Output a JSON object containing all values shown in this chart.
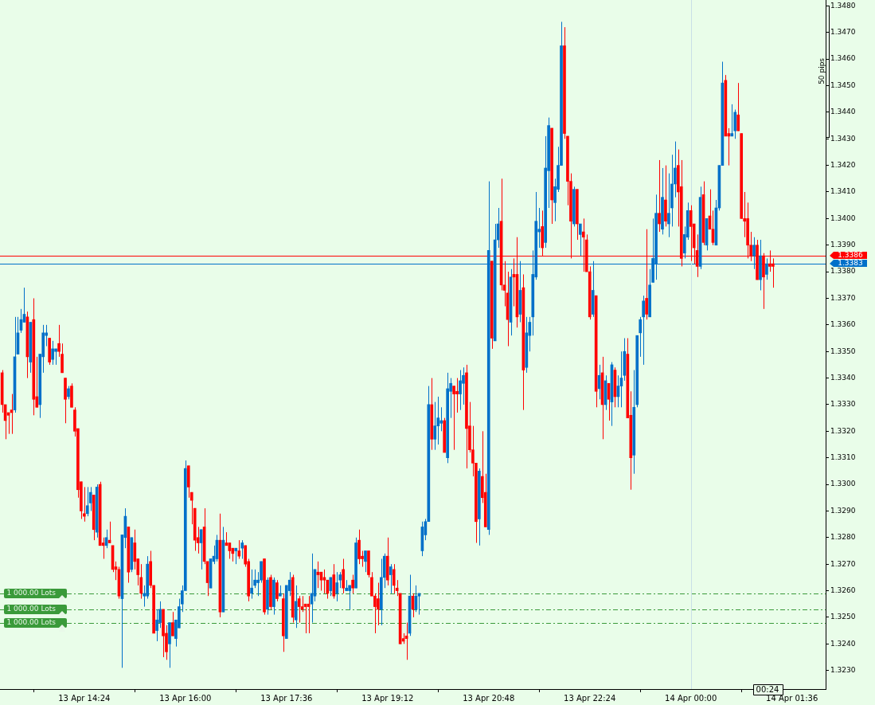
{
  "chart_data": {
    "type": "candlestick",
    "x": [
      "--04-13T13:06",
      "--04-13T13:09",
      "--04-13T13:12",
      "--04-13T13:15",
      "--04-13T13:18",
      "--04-13T13:21",
      "--04-13T13:24",
      "--04-13T13:27",
      "--04-13T13:30",
      "--04-13T13:33",
      "--04-13T13:36",
      "--04-13T13:39",
      "--04-13T13:42",
      "--04-13T13:45",
      "--04-13T13:48",
      "--04-13T13:51",
      "--04-13T13:54",
      "--04-13T13:57",
      "--04-13T14:00",
      "--04-13T14:03",
      "--04-13T14:06",
      "--04-13T14:09",
      "--04-13T14:12",
      "--04-13T14:15",
      "--04-13T14:18",
      "--04-13T14:21",
      "--04-13T14:24",
      "--04-13T14:27",
      "--04-13T14:30",
      "--04-13T14:33",
      "--04-13T14:36",
      "--04-13T14:39",
      "--04-13T14:42",
      "--04-13T14:45",
      "--04-13T14:48",
      "--04-13T14:51",
      "--04-13T14:54",
      "--04-13T14:57",
      "--04-13T15:00",
      "--04-13T15:03",
      "--04-13T15:06",
      "--04-13T15:09",
      "--04-13T15:12",
      "--04-13T15:15",
      "--04-13T15:18",
      "--04-13T15:21",
      "--04-13T15:24",
      "--04-13T15:27",
      "--04-13T15:30",
      "--04-13T15:33",
      "--04-13T15:36",
      "--04-13T15:39",
      "--04-13T15:42",
      "--04-13T15:45",
      "--04-13T15:48",
      "--04-13T15:51",
      "--04-13T15:54",
      "--04-13T15:57",
      "--04-13T16:00",
      "--04-13T16:03",
      "--04-13T16:06",
      "--04-13T16:09",
      "--04-13T16:12",
      "--04-13T16:15",
      "--04-13T16:18",
      "--04-13T16:21",
      "--04-13T16:24",
      "--04-13T16:27",
      "--04-13T16:30",
      "--04-13T16:33",
      "--04-13T16:36",
      "--04-13T16:39",
      "--04-13T16:42",
      "--04-13T16:45",
      "--04-13T16:48",
      "--04-13T16:51",
      "--04-13T16:54",
      "--04-13T16:57",
      "--04-13T17:00",
      "--04-13T17:03",
      "--04-13T17:06",
      "--04-13T17:09",
      "--04-13T17:12",
      "--04-13T17:15",
      "--04-13T17:18",
      "--04-13T17:21",
      "--04-13T17:24",
      "--04-13T17:27",
      "--04-13T17:30",
      "--04-13T17:33",
      "--04-13T17:36",
      "--04-13T17:39",
      "--04-13T17:42",
      "--04-13T17:45",
      "--04-13T17:48",
      "--04-13T17:51",
      "--04-13T17:54",
      "--04-13T17:57",
      "--04-13T18:00",
      "--04-13T18:03",
      "--04-13T18:06",
      "--04-13T18:09",
      "--04-13T18:12",
      "--04-13T18:15",
      "--04-13T18:18",
      "--04-13T18:21",
      "--04-13T18:24",
      "--04-13T18:27",
      "--04-13T18:30",
      "--04-13T18:33",
      "--04-13T18:36",
      "--04-13T18:39",
      "--04-13T18:42",
      "--04-13T18:45",
      "--04-13T18:48",
      "--04-13T18:51",
      "--04-13T18:54",
      "--04-13T18:57",
      "--04-13T19:00",
      "--04-13T19:03",
      "--04-13T19:06",
      "--04-13T19:09",
      "--04-13T19:12",
      "--04-13T19:15",
      "--04-13T19:18",
      "--04-13T19:21",
      "--04-13T19:24",
      "--04-13T19:27",
      "--04-13T19:30",
      "--04-13T19:33",
      "--04-13T19:36",
      "--04-13T19:39",
      "--04-13T19:42",
      "--04-13T19:45",
      "--04-13T19:48",
      "--04-13T19:51",
      "--04-13T19:54",
      "--04-13T19:57",
      "--04-13T20:00",
      "--04-13T20:03",
      "--04-13T20:06",
      "--04-13T20:09",
      "--04-13T20:12",
      "--04-13T20:15",
      "--04-13T20:18",
      "--04-13T20:21",
      "--04-13T20:24",
      "--04-13T20:27",
      "--04-13T20:30",
      "--04-13T20:33",
      "--04-13T20:36",
      "--04-13T20:39",
      "--04-13T20:42",
      "--04-13T20:45",
      "--04-13T20:48",
      "--04-13T20:51",
      "--04-13T20:54",
      "--04-13T20:57",
      "--04-13T21:00",
      "--04-13T21:03",
      "--04-13T21:06",
      "--04-13T21:09",
      "--04-13T21:12",
      "--04-13T21:15",
      "--04-13T21:18",
      "--04-13T21:21",
      "--04-13T21:24",
      "--04-13T21:27",
      "--04-13T21:30",
      "--04-13T21:33",
      "--04-13T21:36",
      "--04-13T21:39",
      "--04-13T21:42",
      "--04-13T21:45",
      "--04-13T21:48",
      "--04-13T21:51",
      "--04-13T21:54",
      "--04-13T21:57",
      "--04-13T22:00",
      "--04-13T22:03",
      "--04-13T22:06",
      "--04-13T22:09",
      "--04-13T22:12",
      "--04-13T22:15",
      "--04-13T22:18",
      "--04-13T22:21",
      "--04-13T22:24",
      "--04-13T22:27",
      "--04-13T22:30",
      "--04-13T22:33",
      "--04-13T22:36",
      "--04-13T22:39",
      "--04-13T22:42",
      "--04-13T22:45",
      "--04-13T22:48",
      "--04-13T22:51",
      "--04-13T22:54",
      "--04-13T22:57",
      "--04-13T23:00",
      "--04-13T23:03",
      "--04-13T23:06",
      "--04-13T23:09",
      "--04-13T23:12",
      "--04-13T23:15",
      "--04-13T23:18",
      "--04-13T23:21",
      "--04-13T23:24",
      "--04-13T23:27",
      "--04-13T23:30",
      "--04-13T23:33",
      "--04-13T23:36",
      "--04-13T23:39",
      "--04-13T23:42",
      "--04-13T23:45",
      "--04-13T23:48",
      "--04-13T23:51",
      "--04-13T23:54",
      "--04-13T23:57",
      "--04-14T00:00",
      "--04-14T00:03",
      "--04-14T00:06",
      "--04-14T00:09",
      "--04-14T00:12",
      "--04-14T00:15",
      "--04-14T00:18",
      "--04-14T00:21",
      "--04-14T00:24",
      "--04-14T00:27",
      "--04-14T00:30",
      "--04-14T00:33",
      "--04-14T00:36",
      "--04-14T00:39",
      "--04-14T00:42",
      "--04-14T00:45",
      "--04-14T00:48",
      "--04-14T00:51",
      "--04-14T00:54",
      "--04-14T00:57",
      "--04-14T01:00",
      "--04-14T01:03",
      "--04-14T01:06",
      "--04-14T01:09",
      "--04-14T01:12",
      "--04-14T01:15",
      "--04-14T01:18"
    ],
    "ohlc": [
      [
        1.3342,
        1.3343,
        1.3327,
        1.333
      ],
      [
        1.333,
        1.333,
        1.3317,
        1.3324
      ],
      [
        1.3327,
        1.3327,
        1.3319,
        1.3326
      ],
      [
        1.3328,
        1.3334,
        1.3319,
        1.3327
      ],
      [
        1.3328,
        1.3363,
        1.3327,
        1.3348
      ],
      [
        1.3349,
        1.3363,
        1.3349,
        1.3357
      ],
      [
        1.3358,
        1.3366,
        1.3357,
        1.3362
      ],
      [
        1.3361,
        1.3374,
        1.3361,
        1.3364
      ],
      [
        1.3363,
        1.3365,
        1.334,
        1.3348
      ],
      [
        1.3346,
        1.3361,
        1.3342,
        1.3361
      ],
      [
        1.3362,
        1.337,
        1.3326,
        1.3332
      ],
      [
        1.3333,
        1.3348,
        1.3329,
        1.3329
      ],
      [
        1.333,
        1.3349,
        1.3325,
        1.3349
      ],
      [
        1.3348,
        1.336,
        1.3342,
        1.3357
      ],
      [
        1.3356,
        1.336,
        1.3352,
        1.3357
      ],
      [
        1.3355,
        1.3355,
        1.3345,
        1.3346
      ],
      [
        1.3347,
        1.3354,
        1.3345,
        1.3351
      ],
      [
        1.335,
        1.3351,
        1.3345,
        1.3351
      ],
      [
        1.3353,
        1.336,
        1.3348,
        1.335
      ],
      [
        1.3349,
        1.3353,
        1.3342,
        1.3342
      ],
      [
        1.334,
        1.334,
        1.3323,
        1.3332
      ],
      [
        1.3333,
        1.3337,
        1.3332,
        1.3336
      ],
      [
        1.3337,
        1.3338,
        1.3329,
        1.3329
      ],
      [
        1.3328,
        1.3329,
        1.3318,
        1.332
      ],
      [
        1.3321,
        1.3321,
        1.3295,
        1.3298
      ],
      [
        1.3301,
        1.3301,
        1.3287,
        1.329
      ],
      [
        1.3289,
        1.3299,
        1.3286,
        1.3288
      ],
      [
        1.3289,
        1.3299,
        1.3288,
        1.3292
      ],
      [
        1.3293,
        1.3299,
        1.329,
        1.3297
      ],
      [
        1.3296,
        1.3296,
        1.3279,
        1.3283
      ],
      [
        1.3282,
        1.33,
        1.328,
        1.3299
      ],
      [
        1.33,
        1.3301,
        1.3277,
        1.3277
      ],
      [
        1.3278,
        1.328,
        1.3272,
        1.3277
      ],
      [
        1.3277,
        1.3283,
        1.3276,
        1.328
      ],
      [
        1.3279,
        1.3286,
        1.3278,
        1.3278
      ],
      [
        1.3277,
        1.3277,
        1.3267,
        1.3268
      ],
      [
        1.3269,
        1.3271,
        1.3264,
        1.3268
      ],
      [
        1.3268,
        1.3269,
        1.3257,
        1.3258
      ],
      [
        1.3257,
        1.3281,
        1.3231,
        1.3281
      ],
      [
        1.328,
        1.3291,
        1.3276,
        1.3288
      ],
      [
        1.3284,
        1.3284,
        1.3263,
        1.3267
      ],
      [
        1.3268,
        1.328,
        1.3267,
        1.328
      ],
      [
        1.3278,
        1.3283,
        1.3268,
        1.3271
      ],
      [
        1.3272,
        1.3272,
        1.3262,
        1.3266
      ],
      [
        1.3265,
        1.327,
        1.3257,
        1.3259
      ],
      [
        1.3258,
        1.3262,
        1.3254,
        1.3259
      ],
      [
        1.3258,
        1.3273,
        1.3257,
        1.327
      ],
      [
        1.3271,
        1.3275,
        1.3261,
        1.3262
      ],
      [
        1.3262,
        1.3262,
        1.3244,
        1.3244
      ],
      [
        1.3245,
        1.3253,
        1.3241,
        1.3249
      ],
      [
        1.3248,
        1.3256,
        1.3246,
        1.3253
      ],
      [
        1.3253,
        1.3253,
        1.3235,
        1.3243
      ],
      [
        1.3244,
        1.3247,
        1.3234,
        1.3237
      ],
      [
        1.324,
        1.3248,
        1.3231,
        1.3248
      ],
      [
        1.3248,
        1.3252,
        1.3243,
        1.3243
      ],
      [
        1.3242,
        1.3249,
        1.3239,
        1.3249
      ],
      [
        1.3246,
        1.3257,
        1.3246,
        1.3254
      ],
      [
        1.3255,
        1.3262,
        1.3252,
        1.326
      ],
      [
        1.326,
        1.3309,
        1.326,
        1.3306
      ],
      [
        1.3307,
        1.3307,
        1.3295,
        1.3299
      ],
      [
        1.3297,
        1.3297,
        1.3285,
        1.3294
      ],
      [
        1.3291,
        1.3291,
        1.3275,
        1.3279
      ],
      [
        1.328,
        1.3284,
        1.3274,
        1.3278
      ],
      [
        1.3278,
        1.3283,
        1.3268,
        1.3283
      ],
      [
        1.3284,
        1.3291,
        1.327,
        1.3271
      ],
      [
        1.3271,
        1.3271,
        1.3258,
        1.3263
      ],
      [
        1.3261,
        1.3272,
        1.3261,
        1.3272
      ],
      [
        1.3271,
        1.3277,
        1.327,
        1.3273
      ],
      [
        1.3272,
        1.3281,
        1.3271,
        1.3279
      ],
      [
        1.3279,
        1.3289,
        1.325,
        1.3252
      ],
      [
        1.3252,
        1.3284,
        1.3252,
        1.3279
      ],
      [
        1.3278,
        1.3282,
        1.3277,
        1.3277
      ],
      [
        1.3278,
        1.3278,
        1.3272,
        1.3275
      ],
      [
        1.3276,
        1.3276,
        1.3271,
        1.3274
      ],
      [
        1.3275,
        1.3276,
        1.327,
        1.3276
      ],
      [
        1.3275,
        1.3279,
        1.3272,
        1.3273
      ],
      [
        1.3276,
        1.3279,
        1.3272,
        1.3278
      ],
      [
        1.3277,
        1.3277,
        1.3269,
        1.327
      ],
      [
        1.3271,
        1.3272,
        1.3256,
        1.3258
      ],
      [
        1.3259,
        1.3268,
        1.3257,
        1.3261
      ],
      [
        1.3262,
        1.3268,
        1.3261,
        1.3264
      ],
      [
        1.3263,
        1.3267,
        1.3258,
        1.3264
      ],
      [
        1.3264,
        1.3271,
        1.3263,
        1.3271
      ],
      [
        1.3272,
        1.3272,
        1.3251,
        1.3252
      ],
      [
        1.3253,
        1.3265,
        1.3251,
        1.3264
      ],
      [
        1.3265,
        1.3266,
        1.3253,
        1.3254
      ],
      [
        1.3254,
        1.3265,
        1.3251,
        1.3264
      ],
      [
        1.3263,
        1.3264,
        1.3256,
        1.3257
      ],
      [
        1.3258,
        1.3262,
        1.3258,
        1.3259
      ],
      [
        1.3257,
        1.3259,
        1.3237,
        1.3243
      ],
      [
        1.3242,
        1.3262,
        1.3242,
        1.3262
      ],
      [
        1.326,
        1.3267,
        1.3258,
        1.3264
      ],
      [
        1.3265,
        1.3266,
        1.3248,
        1.325
      ],
      [
        1.3249,
        1.3262,
        1.3246,
        1.3256
      ],
      [
        1.3257,
        1.3258,
        1.3248,
        1.3254
      ],
      [
        1.3254,
        1.3258,
        1.3252,
        1.3253
      ],
      [
        1.3255,
        1.3255,
        1.3244,
        1.3254
      ],
      [
        1.3255,
        1.3258,
        1.3244,
        1.3254
      ],
      [
        1.3255,
        1.3274,
        1.3248,
        1.3259
      ],
      [
        1.3258,
        1.3268,
        1.3256,
        1.3268
      ],
      [
        1.3267,
        1.3271,
        1.3261,
        1.3266
      ],
      [
        1.3267,
        1.3267,
        1.326,
        1.3264
      ],
      [
        1.3265,
        1.3268,
        1.3259,
        1.3264
      ],
      [
        1.3264,
        1.3264,
        1.3257,
        1.3259
      ],
      [
        1.326,
        1.3265,
        1.3258,
        1.3265
      ],
      [
        1.3266,
        1.327,
        1.3257,
        1.3258
      ],
      [
        1.3259,
        1.3267,
        1.3256,
        1.3263
      ],
      [
        1.3264,
        1.3267,
        1.3261,
        1.3266
      ],
      [
        1.3268,
        1.3272,
        1.3259,
        1.3261
      ],
      [
        1.326,
        1.3264,
        1.326,
        1.3261
      ],
      [
        1.326,
        1.3262,
        1.3253,
        1.3262
      ],
      [
        1.3264,
        1.3266,
        1.3259,
        1.3261
      ],
      [
        1.3261,
        1.328,
        1.3261,
        1.3278
      ],
      [
        1.3279,
        1.3283,
        1.327,
        1.3272
      ],
      [
        1.3273,
        1.3275,
        1.3269,
        1.3272
      ],
      [
        1.3271,
        1.3275,
        1.3267,
        1.3275
      ],
      [
        1.3275,
        1.3275,
        1.3265,
        1.3266
      ],
      [
        1.3265,
        1.3267,
        1.3258,
        1.3258
      ],
      [
        1.3258,
        1.3259,
        1.3244,
        1.3254
      ],
      [
        1.3257,
        1.3263,
        1.3247,
        1.3253
      ],
      [
        1.3253,
        1.3272,
        1.3247,
        1.3265
      ],
      [
        1.3265,
        1.3274,
        1.3261,
        1.3273
      ],
      [
        1.3273,
        1.328,
        1.3262,
        1.3264
      ],
      [
        1.3266,
        1.327,
        1.3259,
        1.3269
      ],
      [
        1.3268,
        1.327,
        1.3259,
        1.3262
      ],
      [
        1.3261,
        1.3264,
        1.3258,
        1.326
      ],
      [
        1.3259,
        1.3259,
        1.324,
        1.324
      ],
      [
        1.3242,
        1.3244,
        1.324,
        1.3241
      ],
      [
        1.3243,
        1.3248,
        1.3234,
        1.3242
      ],
      [
        1.3244,
        1.3266,
        1.3243,
        1.3258
      ],
      [
        1.3258,
        1.3259,
        1.325,
        1.3253
      ],
      [
        1.3253,
        1.3262,
        1.3252,
        1.3258
      ],
      [
        1.3258,
        1.3259,
        1.3251,
        1.3259
      ],
      [
        1.3275,
        1.3286,
        1.3273,
        1.3284
      ],
      [
        1.3281,
        1.3287,
        1.3279,
        1.3286
      ],
      [
        1.3286,
        1.3337,
        1.3286,
        1.333
      ],
      [
        1.333,
        1.334,
        1.3313,
        1.3317
      ],
      [
        1.3317,
        1.3331,
        1.3313,
        1.3322
      ],
      [
        1.3322,
        1.3333,
        1.3315,
        1.3325
      ],
      [
        1.3323,
        1.3329,
        1.332,
        1.3324
      ],
      [
        1.3324,
        1.3325,
        1.3312,
        1.3312
      ],
      [
        1.331,
        1.3342,
        1.3308,
        1.3336
      ],
      [
        1.3335,
        1.334,
        1.3325,
        1.3338
      ],
      [
        1.3337,
        1.3337,
        1.3313,
        1.3334
      ],
      [
        1.3335,
        1.334,
        1.3327,
        1.3334
      ],
      [
        1.3334,
        1.3343,
        1.3328,
        1.3339
      ],
      [
        1.3338,
        1.3344,
        1.333,
        1.3341
      ],
      [
        1.3342,
        1.3345,
        1.3306,
        1.3321
      ],
      [
        1.3322,
        1.3331,
        1.3312,
        1.3313
      ],
      [
        1.3313,
        1.3322,
        1.3303,
        1.3308
      ],
      [
        1.3308,
        1.3308,
        1.3278,
        1.3286
      ],
      [
        1.3287,
        1.3306,
        1.3277,
        1.3305
      ],
      [
        1.3303,
        1.332,
        1.3293,
        1.3295
      ],
      [
        1.3297,
        1.3304,
        1.3284,
        1.3284
      ],
      [
        1.3283,
        1.3414,
        1.3281,
        1.3388
      ],
      [
        1.3384,
        1.3384,
        1.3351,
        1.3355
      ],
      [
        1.3354,
        1.3398,
        1.3354,
        1.3392
      ],
      [
        1.3392,
        1.3404,
        1.3389,
        1.3398
      ],
      [
        1.3399,
        1.3415,
        1.3373,
        1.3375
      ],
      [
        1.3375,
        1.3384,
        1.3367,
        1.3373
      ],
      [
        1.3372,
        1.338,
        1.3352,
        1.3362
      ],
      [
        1.3361,
        1.3381,
        1.3356,
        1.3378
      ],
      [
        1.3379,
        1.3385,
        1.3367,
        1.3378
      ],
      [
        1.3379,
        1.3393,
        1.3359,
        1.3363
      ],
      [
        1.3364,
        1.3384,
        1.3361,
        1.3373
      ],
      [
        1.3374,
        1.3379,
        1.3328,
        1.3343
      ],
      [
        1.3344,
        1.3363,
        1.3342,
        1.3357
      ],
      [
        1.3356,
        1.3363,
        1.335,
        1.3361
      ],
      [
        1.3363,
        1.3388,
        1.3356,
        1.3379
      ],
      [
        1.3378,
        1.341,
        1.3377,
        1.3399
      ],
      [
        1.3395,
        1.3404,
        1.3389,
        1.3396
      ],
      [
        1.3397,
        1.3403,
        1.3386,
        1.3389
      ],
      [
        1.3391,
        1.3431,
        1.3389,
        1.3419
      ],
      [
        1.3418,
        1.3438,
        1.3404,
        1.3435
      ],
      [
        1.3434,
        1.3434,
        1.3398,
        1.3407
      ],
      [
        1.3406,
        1.3415,
        1.3399,
        1.3412
      ],
      [
        1.3411,
        1.3427,
        1.341,
        1.342
      ],
      [
        1.342,
        1.3474,
        1.342,
        1.3465
      ],
      [
        1.3465,
        1.3472,
        1.343,
        1.3432
      ],
      [
        1.3431,
        1.3431,
        1.3405,
        1.3414
      ],
      [
        1.3414,
        1.3417,
        1.3385,
        1.3399
      ],
      [
        1.3398,
        1.3412,
        1.3397,
        1.3411
      ],
      [
        1.3411,
        1.3411,
        1.3392,
        1.3398
      ],
      [
        1.3394,
        1.3398,
        1.3386,
        1.3398
      ],
      [
        1.3395,
        1.34,
        1.338,
        1.3393
      ],
      [
        1.3392,
        1.3394,
        1.338,
        1.338
      ],
      [
        1.338,
        1.3382,
        1.3362,
        1.3363
      ],
      [
        1.3364,
        1.3384,
        1.3363,
        1.3373
      ],
      [
        1.3371,
        1.3371,
        1.3329,
        1.3335
      ],
      [
        1.3336,
        1.3345,
        1.3332,
        1.3341
      ],
      [
        1.3342,
        1.3348,
        1.3317,
        1.333
      ],
      [
        1.333,
        1.3341,
        1.3328,
        1.3339
      ],
      [
        1.3338,
        1.3338,
        1.3324,
        1.3332
      ],
      [
        1.3331,
        1.3346,
        1.3322,
        1.3345
      ],
      [
        1.3343,
        1.3344,
        1.3329,
        1.3333
      ],
      [
        1.3333,
        1.3341,
        1.3329,
        1.3337
      ],
      [
        1.3337,
        1.335,
        1.3329,
        1.334
      ],
      [
        1.3341,
        1.3355,
        1.3339,
        1.335
      ],
      [
        1.3349,
        1.3355,
        1.3325,
        1.3325
      ],
      [
        1.3326,
        1.3335,
        1.3298,
        1.331
      ],
      [
        1.3311,
        1.3343,
        1.3304,
        1.3329
      ],
      [
        1.333,
        1.3356,
        1.3329,
        1.3356
      ],
      [
        1.3357,
        1.3363,
        1.3348,
        1.3362
      ],
      [
        1.3363,
        1.3371,
        1.3345,
        1.3369
      ],
      [
        1.337,
        1.3396,
        1.3362,
        1.3364
      ],
      [
        1.3363,
        1.3381,
        1.3363,
        1.3375
      ],
      [
        1.3376,
        1.34,
        1.3376,
        1.3385
      ],
      [
        1.3383,
        1.3409,
        1.3377,
        1.3402
      ],
      [
        1.3402,
        1.3422,
        1.3395,
        1.3398
      ],
      [
        1.3396,
        1.3419,
        1.3394,
        1.3408
      ],
      [
        1.3407,
        1.342,
        1.3397,
        1.3399
      ],
      [
        1.3398,
        1.3417,
        1.3393,
        1.3402
      ],
      [
        1.3404,
        1.3424,
        1.3397,
        1.3413
      ],
      [
        1.3413,
        1.3429,
        1.3408,
        1.3419
      ],
      [
        1.342,
        1.3426,
        1.3397,
        1.341
      ],
      [
        1.3412,
        1.3422,
        1.3382,
        1.3385
      ],
      [
        1.3387,
        1.3397,
        1.3385,
        1.3394
      ],
      [
        1.3393,
        1.3406,
        1.3392,
        1.3403
      ],
      [
        1.3403,
        1.3405,
        1.3384,
        1.3397
      ],
      [
        1.3398,
        1.3398,
        1.3383,
        1.3389
      ],
      [
        1.3388,
        1.3394,
        1.3378,
        1.3382
      ],
      [
        1.3382,
        1.3412,
        1.3381,
        1.3408
      ],
      [
        1.3409,
        1.3414,
        1.339,
        1.3391
      ],
      [
        1.339,
        1.34,
        1.3388,
        1.34
      ],
      [
        1.3401,
        1.3411,
        1.3396,
        1.3396
      ],
      [
        1.3396,
        1.3403,
        1.339,
        1.3391
      ],
      [
        1.339,
        1.3407,
        1.339,
        1.3404
      ],
      [
        1.3404,
        1.342,
        1.3403,
        1.342
      ],
      [
        1.342,
        1.3459,
        1.342,
        1.3451
      ],
      [
        1.3452,
        1.3454,
        1.3431,
        1.3431
      ],
      [
        1.3432,
        1.3434,
        1.342,
        1.3431
      ],
      [
        1.3431,
        1.3443,
        1.3431,
        1.3432
      ],
      [
        1.3433,
        1.3441,
        1.343,
        1.344
      ],
      [
        1.3439,
        1.3451,
        1.3433,
        1.3433
      ],
      [
        1.3432,
        1.3432,
        1.34,
        1.34
      ],
      [
        1.34,
        1.341,
        1.3393,
        1.3399
      ],
      [
        1.34,
        1.3406,
        1.3385,
        1.339
      ],
      [
        1.339,
        1.3395,
        1.3384,
        1.3386
      ],
      [
        1.3386,
        1.3393,
        1.3381,
        1.339
      ],
      [
        1.339,
        1.3392,
        1.3377,
        1.3377
      ],
      [
        1.3377,
        1.3392,
        1.3373,
        1.3386
      ],
      [
        1.3386,
        1.3387,
        1.3366,
        1.3378
      ],
      [
        1.3379,
        1.3385,
        1.3377,
        1.3383
      ],
      [
        1.3383,
        1.3388,
        1.338,
        1.3382
      ],
      [
        1.3383,
        1.3385,
        1.3374,
        1.3382
      ]
    ],
    "colors": [
      "#ff0000",
      "#ff0000",
      "#ff0000",
      "#ff0000",
      "#0070c9",
      "#0070c9",
      "#0070c9",
      "#0070c9",
      "#ff0000",
      "#0070c9",
      "#ff0000",
      "#ff0000",
      "#0070c9",
      "#0070c9",
      "#0070c9",
      "#ff0000",
      "#0070c9",
      "#0070c9",
      "#ff0000",
      "#ff0000",
      "#ff0000",
      "#0070c9",
      "#ff0000",
      "#ff0000",
      "#ff0000",
      "#ff0000",
      "#ff0000",
      "#0070c9",
      "#0070c9",
      "#ff0000",
      "#0070c9",
      "#ff0000",
      "#ff0000",
      "#0070c9",
      "#ff0000",
      "#ff0000",
      "#ff0000",
      "#ff0000",
      "#0070c9",
      "#0070c9",
      "#ff0000",
      "#0070c9",
      "#ff0000",
      "#ff0000",
      "#ff0000",
      "#0070c9",
      "#0070c9",
      "#ff0000",
      "#ff0000",
      "#0070c9",
      "#0070c9",
      "#ff0000",
      "#ff0000",
      "#0070c9",
      "#ff0000",
      "#0070c9",
      "#0070c9",
      "#0070c9",
      "#0070c9",
      "#ff0000",
      "#ff0000",
      "#ff0000",
      "#ff0000",
      "#0070c9",
      "#ff0000",
      "#ff0000",
      "#0070c9",
      "#0070c9",
      "#0070c9",
      "#ff0000",
      "#0070c9",
      "#ff0000",
      "#ff0000",
      "#ff0000",
      "#0070c9",
      "#ff0000",
      "#0070c9",
      "#ff0000",
      "#ff0000",
      "#0070c9",
      "#0070c9",
      "#0070c9",
      "#0070c9",
      "#ff0000",
      "#0070c9",
      "#ff0000",
      "#0070c9",
      "#ff0000",
      "#0070c9",
      "#ff0000",
      "#0070c9",
      "#0070c9",
      "#ff0000",
      "#0070c9",
      "#ff0000",
      "#ff0000",
      "#ff0000",
      "#ff0000",
      "#0070c9",
      "#0070c9",
      "#ff0000",
      "#ff0000",
      "#ff0000",
      "#ff0000",
      "#0070c9",
      "#ff0000",
      "#0070c9",
      "#0070c9",
      "#ff0000",
      "#0070c9",
      "#0070c9",
      "#ff0000",
      "#0070c9",
      "#ff0000",
      "#ff0000",
      "#0070c9",
      "#ff0000",
      "#ff0000",
      "#ff0000",
      "#ff0000",
      "#0070c9",
      "#0070c9",
      "#ff0000",
      "#0070c9",
      "#ff0000",
      "#ff0000",
      "#ff0000",
      "#ff0000",
      "#ff0000",
      "#0070c9",
      "#ff0000",
      "#0070c9",
      "#0070c9",
      "#0070c9",
      "#0070c9",
      "#0070c9",
      "#ff0000",
      "#0070c9",
      "#0070c9",
      "#0070c9",
      "#ff0000",
      "#0070c9",
      "#0070c9",
      "#ff0000",
      "#ff0000",
      "#0070c9",
      "#0070c9",
      "#ff0000",
      "#ff0000",
      "#ff0000",
      "#ff0000",
      "#0070c9",
      "#ff0000",
      "#ff0000",
      "#0070c9",
      "#ff0000",
      "#0070c9",
      "#0070c9",
      "#ff0000",
      "#ff0000",
      "#ff0000",
      "#0070c9",
      "#ff0000",
      "#ff0000",
      "#0070c9",
      "#ff0000",
      "#0070c9",
      "#0070c9",
      "#0070c9",
      "#0070c9",
      "#0070c9",
      "#ff0000",
      "#0070c9",
      "#0070c9",
      "#ff0000",
      "#0070c9",
      "#0070c9",
      "#0070c9",
      "#ff0000",
      "#ff0000",
      "#ff0000",
      "#0070c9",
      "#ff0000",
      "#0070c9",
      "#ff0000",
      "#ff0000",
      "#ff0000",
      "#0070c9",
      "#ff0000",
      "#0070c9",
      "#ff0000",
      "#0070c9",
      "#ff0000",
      "#0070c9",
      "#ff0000",
      "#0070c9",
      "#0070c9",
      "#0070c9",
      "#ff0000",
      "#ff0000",
      "#0070c9",
      "#0070c9",
      "#0070c9",
      "#0070c9",
      "#ff0000",
      "#0070c9",
      "#0070c9",
      "#0070c9",
      "#ff0000",
      "#0070c9",
      "#ff0000",
      "#0070c9",
      "#0070c9",
      "#0070c9",
      "#ff0000",
      "#ff0000",
      "#0070c9",
      "#0070c9",
      "#ff0000",
      "#ff0000",
      "#ff0000",
      "#0070c9",
      "#ff0000",
      "#0070c9",
      "#ff0000",
      "#ff0000",
      "#0070c9",
      "#0070c9",
      "#0070c9",
      "#ff0000",
      "#ff0000",
      "#0070c9",
      "#0070c9",
      "#ff0000",
      "#ff0000",
      "#ff0000",
      "#ff0000",
      "#ff0000",
      "#0070c9",
      "#ff0000",
      "#0070c9",
      "#ff0000",
      "#0070c9",
      "#ff0000",
      "#ff0000"
    ],
    "xlim": [
      "--04-13T13:04",
      "--04-14T02:08"
    ],
    "xticks": [
      {
        "value": "--04-13T14:24",
        "label": "13 Apr 14:24"
      },
      {
        "value": "--04-13T16:00",
        "label": "13 Apr 16:00"
      },
      {
        "value": "--04-13T17:36",
        "label": "13 Apr 17:36"
      },
      {
        "value": "--04-13T19:12",
        "label": "13 Apr 19:12"
      },
      {
        "value": "--04-13T20:48",
        "label": "13 Apr 20:48"
      },
      {
        "value": "--04-13T22:24",
        "label": "13 Apr 22:24"
      },
      {
        "value": "--04-14T00:00",
        "label": "14 Apr 00:00"
      },
      {
        "value": "--04-14T01:36",
        "label": "14 Apr 01:36"
      }
    ],
    "ylim": [
      1.3223,
      1.3483
    ],
    "yticks": [
      {
        "value": 1.323,
        "label": "1.3230"
      },
      {
        "value": 1.324,
        "label": "1.3240"
      },
      {
        "value": 1.325,
        "label": "1.3250"
      },
      {
        "value": 1.326,
        "label": "1.3260"
      },
      {
        "value": 1.327,
        "label": "1.3270"
      },
      {
        "value": 1.328,
        "label": "1.3280"
      },
      {
        "value": 1.329,
        "label": "1.3290"
      },
      {
        "value": 1.33,
        "label": "1.3300"
      },
      {
        "value": 1.331,
        "label": "1.3310"
      },
      {
        "value": 1.332,
        "label": "1.3320"
      },
      {
        "value": 1.333,
        "label": "1.3330"
      },
      {
        "value": 1.334,
        "label": "1.3340"
      },
      {
        "value": 1.335,
        "label": "1.3350"
      },
      {
        "value": 1.336,
        "label": "1.3360"
      },
      {
        "value": 1.337,
        "label": "1.3370"
      },
      {
        "value": 1.338,
        "label": "1.3380"
      },
      {
        "value": 1.339,
        "label": "1.3390"
      },
      {
        "value": 1.34,
        "label": "1.3400"
      },
      {
        "value": 1.341,
        "label": "1.3410"
      },
      {
        "value": 1.342,
        "label": "1.3420"
      },
      {
        "value": 1.343,
        "label": "1.3430"
      },
      {
        "value": 1.344,
        "label": "1.3440"
      },
      {
        "value": 1.345,
        "label": "1.3450"
      },
      {
        "value": 1.346,
        "label": "1.3460"
      },
      {
        "value": 1.347,
        "label": "1.3470"
      },
      {
        "value": 1.348,
        "label": "1.3480"
      }
    ],
    "ref_lines": [
      {
        "axis": "y",
        "value": 1.3386,
        "label": "1.3386",
        "color": "#ff0000",
        "line_style": "solid"
      },
      {
        "axis": "y",
        "value": 1.3383,
        "label": "1.3383",
        "color": "#0070c9",
        "line_style": "solid"
      },
      {
        "axis": "y",
        "value": 1.3259,
        "label": "1 000.00 Lots",
        "color": "#3a9a3a",
        "line_style": "dashed"
      },
      {
        "axis": "y",
        "value": 1.3253,
        "label": "1 000.00 Lots",
        "color": "#3a9a3a",
        "line_style": "dashed"
      },
      {
        "axis": "y",
        "value": 1.3248,
        "label": "1 000.00 Lots",
        "color": "#3a9a3a",
        "line_style": "dashed"
      },
      {
        "axis": "x",
        "value": "--04-14T00:00",
        "color": "#c9dfe6",
        "line_style": "solid"
      }
    ],
    "annotations": [
      "50 pips",
      "00:24"
    ]
  }
}
